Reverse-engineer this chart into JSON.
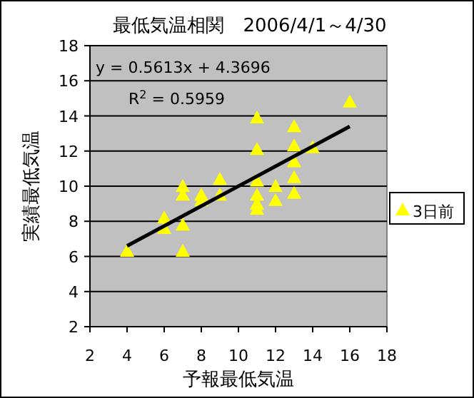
{
  "chart_data": {
    "type": "scatter",
    "title": "最低気温相関　2006/4/1～4/30",
    "xlabel": "予報最低気温",
    "ylabel": "実績最低気温",
    "xlim": [
      2,
      18
    ],
    "xticks": [
      2,
      4,
      6,
      8,
      10,
      12,
      14,
      16,
      18
    ],
    "ylim": [
      2,
      18
    ],
    "yticks": [
      2,
      4,
      6,
      8,
      10,
      12,
      14,
      16,
      18
    ],
    "grid": "y",
    "legend": "right",
    "marker": "triangle",
    "annotations": [
      "y = 0.5613x + 4.3696",
      "R$^{2}$ = 0.5959"
    ],
    "series": [
      {
        "name": "3日前",
        "type": "scatter",
        "color": "#ffff00",
        "x": [
          4,
          6,
          6,
          7,
          7,
          7,
          7,
          8,
          8,
          9,
          9,
          11,
          11,
          11,
          11,
          11,
          11,
          12,
          12,
          13,
          13,
          13,
          13,
          13,
          14,
          16
        ],
        "values": [
          6.3,
          8.2,
          7.6,
          10.0,
          9.5,
          7.8,
          6.3,
          9.5,
          9.2,
          10.4,
          9.5,
          13.9,
          12.1,
          10.3,
          9.5,
          9.0,
          8.7,
          10.0,
          9.2,
          13.4,
          12.3,
          11.4,
          10.5,
          9.6,
          12.2,
          14.8
        ]
      },
      {
        "type": "line",
        "color": "#000000",
        "x": [
          4,
          16
        ],
        "values": [
          6.6,
          13.4
        ],
        "marker": "none",
        "line_style": "solid"
      }
    ]
  }
}
